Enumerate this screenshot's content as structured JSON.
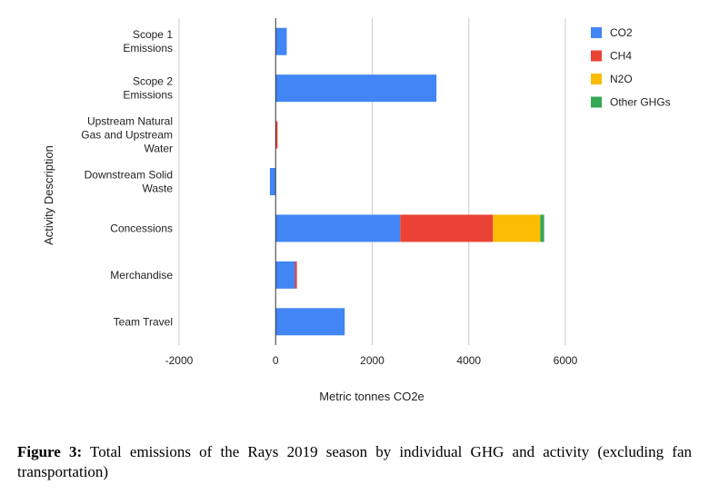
{
  "chart_data": {
    "type": "bar",
    "orientation": "horizontal",
    "stacked": true,
    "categories": [
      [
        "Scope 1",
        "Emissions"
      ],
      [
        "Scope 2",
        "Emissions"
      ],
      [
        "Upstream Natural",
        "Gas and Upstream",
        "Water"
      ],
      [
        "Downstream Solid",
        "Waste"
      ],
      [
        "Concessions"
      ],
      [
        "Merchandise"
      ],
      [
        "Team Travel"
      ]
    ],
    "series": [
      {
        "name": "CO2",
        "color": "#4285f4",
        "values": [
          230,
          3330,
          0,
          -120,
          2580,
          400,
          1430
        ]
      },
      {
        "name": "CH4",
        "color": "#ea4335",
        "values": [
          0,
          0,
          40,
          0,
          1920,
          40,
          0
        ]
      },
      {
        "name": "N2O",
        "color": "#fbbc04",
        "values": [
          0,
          0,
          0,
          0,
          980,
          0,
          0
        ]
      },
      {
        "name": "Other GHGs",
        "color": "#34a853",
        "values": [
          0,
          0,
          0,
          0,
          80,
          0,
          0
        ]
      }
    ],
    "x_ticks": [
      "-2000",
      "0",
      "2000",
      "4000",
      "6000"
    ],
    "x_tick_values": [
      -2000,
      0,
      2000,
      4000,
      6000
    ],
    "xlim": [
      -2000,
      6000
    ],
    "xlabel": "Metric tonnes CO2e",
    "ylabel": "Activity Description",
    "grid": true,
    "legend_position": "top-right"
  },
  "caption": {
    "label": "Figure 3:",
    "text": " Total emissions of the Rays 2019 season by individual GHG and activity (excluding fan transportation)"
  }
}
